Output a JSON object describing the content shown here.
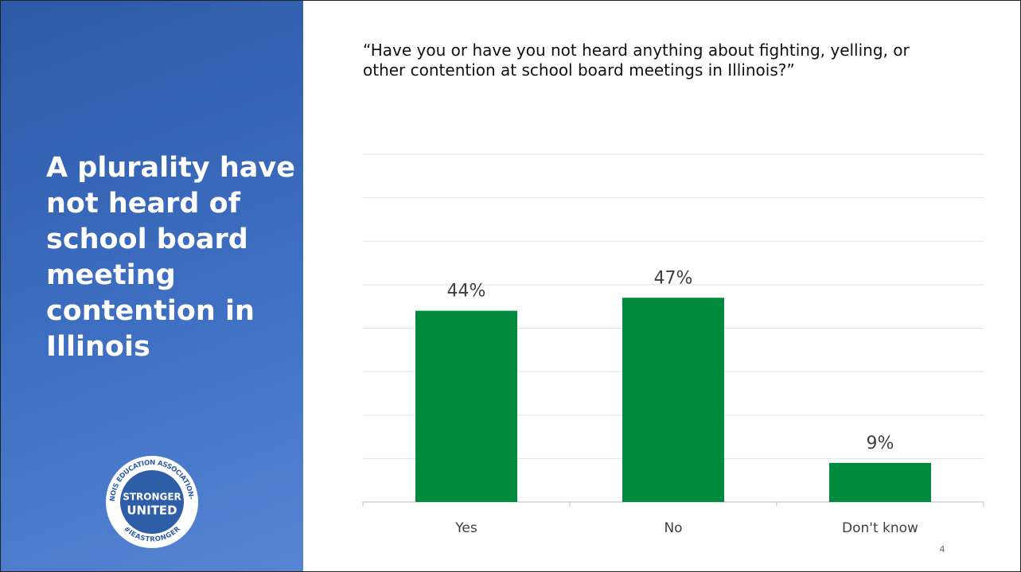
{
  "heading": "A plurality have not heard of school board meeting contention in Illinois",
  "logo": {
    "ring_top": "ILLINOIS EDUCATION ASSOCIATION-NEA",
    "ring_bottom": "#IEASTRONGER",
    "line1": "STRONGER",
    "line2": "UNITED"
  },
  "page_number": "4",
  "chart_data": {
    "type": "bar",
    "title": "“Have you or have you not heard anything about fighting, yelling, or other contention at school board meetings in Illinois?”",
    "categories": [
      "Yes",
      "No",
      "Don't know"
    ],
    "values": [
      44,
      47,
      9
    ],
    "value_labels": [
      "44%",
      "47%",
      "9%"
    ],
    "color": "#008a3e",
    "ylim": [
      0,
      80
    ],
    "yticks": [
      0,
      10,
      20,
      30,
      40,
      50,
      60,
      70,
      80
    ],
    "grid": true
  }
}
